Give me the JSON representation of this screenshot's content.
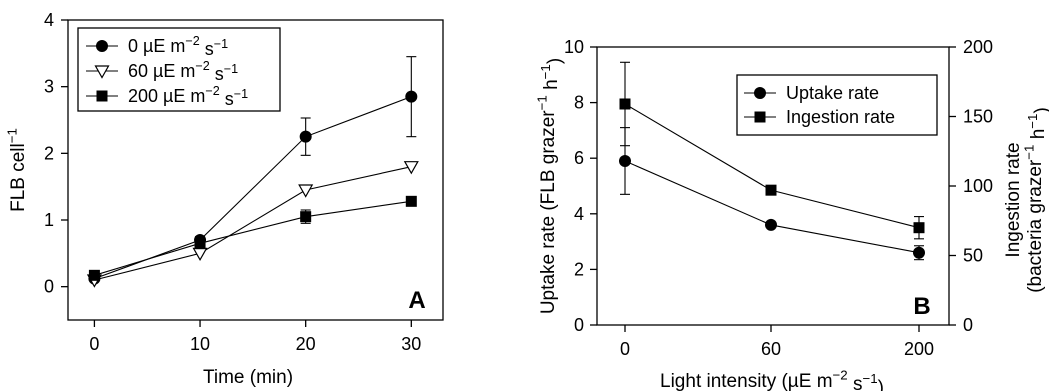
{
  "chart_data": [
    {
      "panel": "A",
      "type": "line",
      "xlabel": "Time (min)",
      "ylabel_main": "FLB cell",
      "ylabel_sup": "−1",
      "xlim": [
        -2.5,
        33
      ],
      "ylim": [
        -0.5,
        4
      ],
      "xticks": [
        0,
        10,
        20,
        30
      ],
      "yticks": [
        0,
        1,
        2,
        3,
        4
      ],
      "legend_position": "top-left",
      "series": [
        {
          "name": "0 µE m^-2 s^-1",
          "legend_parts": [
            "0 µE m",
            "−2",
            " s",
            "−1"
          ],
          "marker": "circle",
          "x": [
            0,
            10,
            20,
            30
          ],
          "y": [
            0.12,
            0.7,
            2.25,
            2.85
          ],
          "err": [
            0.03,
            0.05,
            0.28,
            0.6
          ]
        },
        {
          "name": "60 µE m^-2 s^-1",
          "legend_parts": [
            "60 µE m",
            "−2",
            " s",
            "−1"
          ],
          "marker": "triangle-down-open",
          "x": [
            0,
            10,
            20,
            30
          ],
          "y": [
            0.1,
            0.5,
            1.45,
            1.8
          ],
          "err": [
            0,
            0,
            0,
            0
          ]
        },
        {
          "name": "200 µE m^-2 s^-1",
          "legend_parts": [
            "200 µE m",
            "−2",
            " s",
            "−1"
          ],
          "marker": "square",
          "x": [
            0,
            10,
            20,
            30
          ],
          "y": [
            0.17,
            0.65,
            1.05,
            1.28
          ],
          "err": [
            0.03,
            0.08,
            0.1,
            0
          ]
        }
      ]
    },
    {
      "panel": "B",
      "type": "line",
      "xlabel_parts": [
        "Light intensity (µE m",
        "−2",
        " s",
        "−1",
        ")"
      ],
      "ylabel_left_parts": [
        "Uptake rate (FLB grazer",
        "−1",
        " h",
        "−1",
        ")"
      ],
      "ylabel_right_line1": "Ingestion rate",
      "ylabel_right_line2_parts": [
        "(bacteria grazer",
        "−1",
        " h",
        "−1",
        ")"
      ],
      "categories": [
        "0",
        "60",
        "200"
      ],
      "ylim_left": [
        0,
        10
      ],
      "ylim_right": [
        0,
        200
      ],
      "yticks_left": [
        0,
        2,
        4,
        6,
        8,
        10
      ],
      "yticks_right": [
        0,
        50,
        100,
        150,
        200
      ],
      "legend_position": "top-right",
      "series": [
        {
          "name": "Uptake rate",
          "marker": "circle",
          "axis": "left",
          "values": [
            5.9,
            3.6,
            2.6
          ],
          "err": [
            1.2,
            0,
            0.25
          ]
        },
        {
          "name": "Ingestion rate",
          "marker": "square",
          "axis": "right",
          "values": [
            159,
            97,
            70
          ],
          "err": [
            30,
            0,
            8
          ]
        }
      ]
    }
  ],
  "panels": {
    "a_label": "A",
    "b_label": "B"
  }
}
